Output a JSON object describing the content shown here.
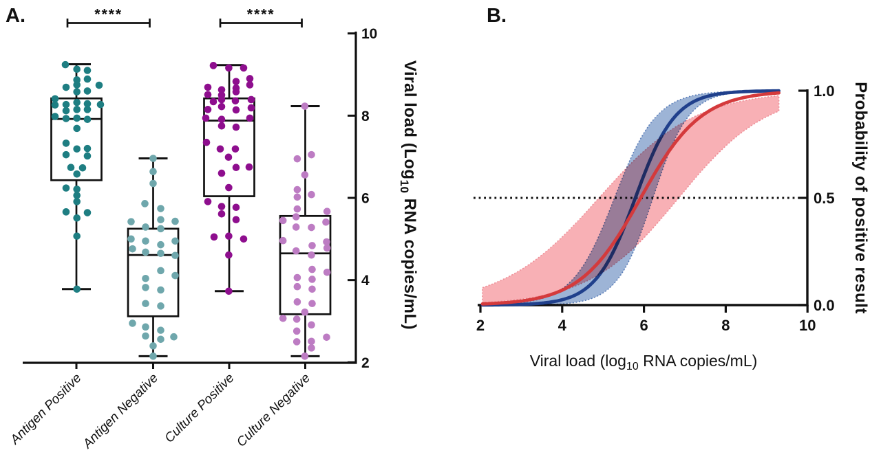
{
  "figure": {
    "panel_a_label": "A.",
    "panel_b_label": "B."
  },
  "chart_data": [
    {
      "type": "box-scatter",
      "panel": "A.",
      "ylabel": "Viral load (Log10 RNA copies/mL)",
      "ylabel_parts": {
        "prefix": "Viral load (Log",
        "sub": "10",
        "suffix": " RNA copies/mL)"
      },
      "ylim": [
        2,
        10
      ],
      "yticks": [
        2,
        4,
        6,
        8,
        10
      ],
      "categories": [
        "Antigen Positive",
        "Antigen Negative",
        "Culture Positive",
        "Culture Negative"
      ],
      "significance": [
        {
          "label": "****",
          "groups": [
            0,
            1
          ]
        },
        {
          "label": "****",
          "groups": [
            2,
            3
          ]
        }
      ],
      "series": [
        {
          "name": "Antigen Positive",
          "color": "#1e7e82",
          "box": {
            "whisker_low": 3.78,
            "q1": 6.43,
            "median": 7.92,
            "q3": 8.42,
            "whisker_high": 9.25
          },
          "points": [
            [
              -16,
              9.24
            ],
            [
              0.7,
              9.13
            ],
            [
              16,
              9.1
            ],
            [
              0.7,
              8.87
            ],
            [
              16,
              8.89
            ],
            [
              -15,
              8.69
            ],
            [
              0.7,
              8.75
            ],
            [
              33,
              8.74
            ],
            [
              16,
              8.6
            ],
            [
              0.7,
              8.58
            ],
            [
              -31,
              8.41
            ],
            [
              -31,
              8.26
            ],
            [
              -15,
              8.27
            ],
            [
              0.7,
              8.32
            ],
            [
              16,
              8.29
            ],
            [
              35,
              8.27
            ],
            [
              -15,
              8.12
            ],
            [
              0.7,
              8.15
            ],
            [
              16,
              8.15
            ],
            [
              -31,
              7.98
            ],
            [
              -15,
              7.93
            ],
            [
              0.7,
              7.94
            ],
            [
              16,
              7.91
            ],
            [
              0.7,
              7.69
            ],
            [
              -15,
              7.33
            ],
            [
              0.7,
              7.19
            ],
            [
              16,
              7.2
            ],
            [
              -15,
              7.05
            ],
            [
              16,
              7.02
            ],
            [
              -8,
              6.74
            ],
            [
              9,
              6.73
            ],
            [
              0.7,
              6.58
            ],
            [
              -15,
              6.24
            ],
            [
              0.7,
              6.21
            ],
            [
              0.7,
              6.06
            ],
            [
              0.7,
              5.91
            ],
            [
              -15,
              5.66
            ],
            [
              16,
              5.64
            ],
            [
              0.7,
              5.51
            ],
            [
              0.7,
              5.07
            ],
            [
              0.7,
              3.78
            ]
          ]
        },
        {
          "name": "Antigen Negative",
          "color": "#6fa7ac",
          "box": {
            "whisker_low": 2.15,
            "q1": 3.12,
            "median": 4.61,
            "q3": 5.25,
            "whisker_high": 6.96
          },
          "points": [
            [
              0,
              6.96
            ],
            [
              0,
              6.64
            ],
            [
              0,
              6.35
            ],
            [
              -12,
              5.86
            ],
            [
              11,
              5.74
            ],
            [
              -32,
              5.42
            ],
            [
              11,
              5.47
            ],
            [
              32,
              5.43
            ],
            [
              -11,
              5.29
            ],
            [
              11,
              5.25
            ],
            [
              -32,
              5.0
            ],
            [
              -11,
              4.95
            ],
            [
              11,
              4.86
            ],
            [
              32,
              4.95
            ],
            [
              -30,
              4.76
            ],
            [
              -11,
              4.68
            ],
            [
              11,
              4.65
            ],
            [
              32,
              4.6
            ],
            [
              11,
              4.23
            ],
            [
              32,
              4.11
            ],
            [
              -11,
              4.04
            ],
            [
              -11,
              3.82
            ],
            [
              11,
              3.76
            ],
            [
              -11,
              3.43
            ],
            [
              11,
              3.37
            ],
            [
              -30,
              2.95
            ],
            [
              -11,
              2.86
            ],
            [
              11,
              2.78
            ],
            [
              -11,
              2.64
            ],
            [
              11,
              2.56
            ],
            [
              30,
              2.62
            ],
            [
              0,
              2.4
            ],
            [
              0,
              2.15
            ]
          ]
        },
        {
          "name": "Culture Positive",
          "color": "#8e0e8e",
          "box": {
            "whisker_low": 3.73,
            "q1": 6.04,
            "median": 7.88,
            "q3": 8.42,
            "whisker_high": 9.23
          },
          "points": [
            [
              -23,
              9.22
            ],
            [
              -0.6,
              9.16
            ],
            [
              21,
              9.16
            ],
            [
              30,
              8.9
            ],
            [
              10,
              8.83
            ],
            [
              30,
              8.75
            ],
            [
              -31,
              8.69
            ],
            [
              10,
              8.67
            ],
            [
              -11,
              8.63
            ],
            [
              10,
              8.58
            ],
            [
              -31,
              8.51
            ],
            [
              -11,
              8.5
            ],
            [
              -23,
              8.34
            ],
            [
              -11,
              8.39
            ],
            [
              9,
              8.36
            ],
            [
              32,
              8.39
            ],
            [
              -11,
              8.22
            ],
            [
              10,
              8.14
            ],
            [
              32,
              8.19
            ],
            [
              -31,
              8.15
            ],
            [
              -34,
              7.94
            ],
            [
              -11,
              7.91
            ],
            [
              30,
              7.94
            ],
            [
              -11,
              7.75
            ],
            [
              10,
              7.72
            ],
            [
              -33,
              7.35
            ],
            [
              -13,
              7.19
            ],
            [
              9,
              7.19
            ],
            [
              -1,
              6.99
            ],
            [
              10,
              6.74
            ],
            [
              29,
              6.75
            ],
            [
              -11,
              6.6
            ],
            [
              -0.6,
              6.25
            ],
            [
              -31,
              5.91
            ],
            [
              -11,
              5.79
            ],
            [
              10,
              5.77
            ],
            [
              -11,
              5.61
            ],
            [
              10,
              5.47
            ],
            [
              -22,
              5.05
            ],
            [
              -0.6,
              5.07
            ],
            [
              21,
              5.0
            ],
            [
              -0.6,
              4.61
            ],
            [
              -0.6,
              3.73
            ]
          ]
        },
        {
          "name": "Culture Negative",
          "color": "#bd7cc3",
          "box": {
            "whisker_low": 2.15,
            "q1": 3.17,
            "median": 4.65,
            "q3": 5.56,
            "whisker_high": 8.23
          },
          "points": [
            [
              -0.6,
              8.23
            ],
            [
              9,
              7.05
            ],
            [
              -11.6,
              6.95
            ],
            [
              -0.6,
              6.56
            ],
            [
              -11.6,
              6.2
            ],
            [
              9,
              6.08
            ],
            [
              -11.6,
              6.02
            ],
            [
              -11.6,
              5.73
            ],
            [
              31.7,
              5.67
            ],
            [
              -13.3,
              5.54
            ],
            [
              -32.3,
              5.45
            ],
            [
              -13.3,
              5.29
            ],
            [
              9,
              5.28
            ],
            [
              30,
              5.41
            ],
            [
              -32.3,
              4.96
            ],
            [
              31,
              4.93
            ],
            [
              10,
              4.84
            ],
            [
              31.7,
              4.78
            ],
            [
              -13.3,
              4.71
            ],
            [
              9,
              4.61
            ],
            [
              10,
              4.26
            ],
            [
              31.7,
              4.19
            ],
            [
              -11.6,
              4.06
            ],
            [
              10,
              4.02
            ],
            [
              -11.6,
              3.84
            ],
            [
              10,
              3.78
            ],
            [
              -11.6,
              3.47
            ],
            [
              10,
              3.43
            ],
            [
              -0.6,
              3.22
            ],
            [
              -32.3,
              3.07
            ],
            [
              -12.3,
              3.05
            ],
            [
              9,
              2.91
            ],
            [
              -12.3,
              2.76
            ],
            [
              31,
              2.61
            ],
            [
              -12.3,
              2.5
            ],
            [
              9,
              2.51
            ],
            [
              9,
              2.35
            ],
            [
              -0.6,
              2.15
            ]
          ]
        }
      ]
    },
    {
      "type": "line",
      "panel": "B.",
      "xlabel": "Viral load (log10 RNA copies/mL)",
      "xlabel_parts": {
        "prefix": "Viral load (log",
        "sub": "10",
        "suffix": " RNA copies/mL)"
      },
      "ylabel": "Probability of positive result",
      "xlim": [
        2,
        10
      ],
      "ylim": [
        0,
        1
      ],
      "xticks": [
        2,
        4,
        6,
        8,
        10
      ],
      "yticks": [
        0,
        0.5,
        1
      ],
      "ytick_labels": [
        "0.0",
        "0.5",
        "1.0"
      ],
      "reference_line": {
        "y": 0.5,
        "style": "dotted",
        "color": "#111111"
      },
      "x_range_drawn": [
        2.05,
        9.3
      ],
      "series": [
        {
          "name": "blue fit",
          "color": "#20408c",
          "band_color": "#9db4d6",
          "band_edge_color": "#5a7db8",
          "logistic": {
            "x0": 5.79,
            "k": 2.05
          },
          "ci_upper": {
            "x0": 5.28,
            "k": 1.95
          },
          "ci_lower": {
            "x0": 6.22,
            "k": 2.3
          }
        },
        {
          "name": "red fit",
          "color": "#d43a3c",
          "band_color": "#f8b0b5",
          "band_edge_color": "#ee8d96",
          "logistic": {
            "x0": 5.92,
            "k": 1.35
          },
          "ci_upper": {
            "x0": 4.9,
            "k": 0.85
          },
          "ci_lower": {
            "x0": 6.85,
            "k": 0.92
          }
        }
      ]
    }
  ]
}
